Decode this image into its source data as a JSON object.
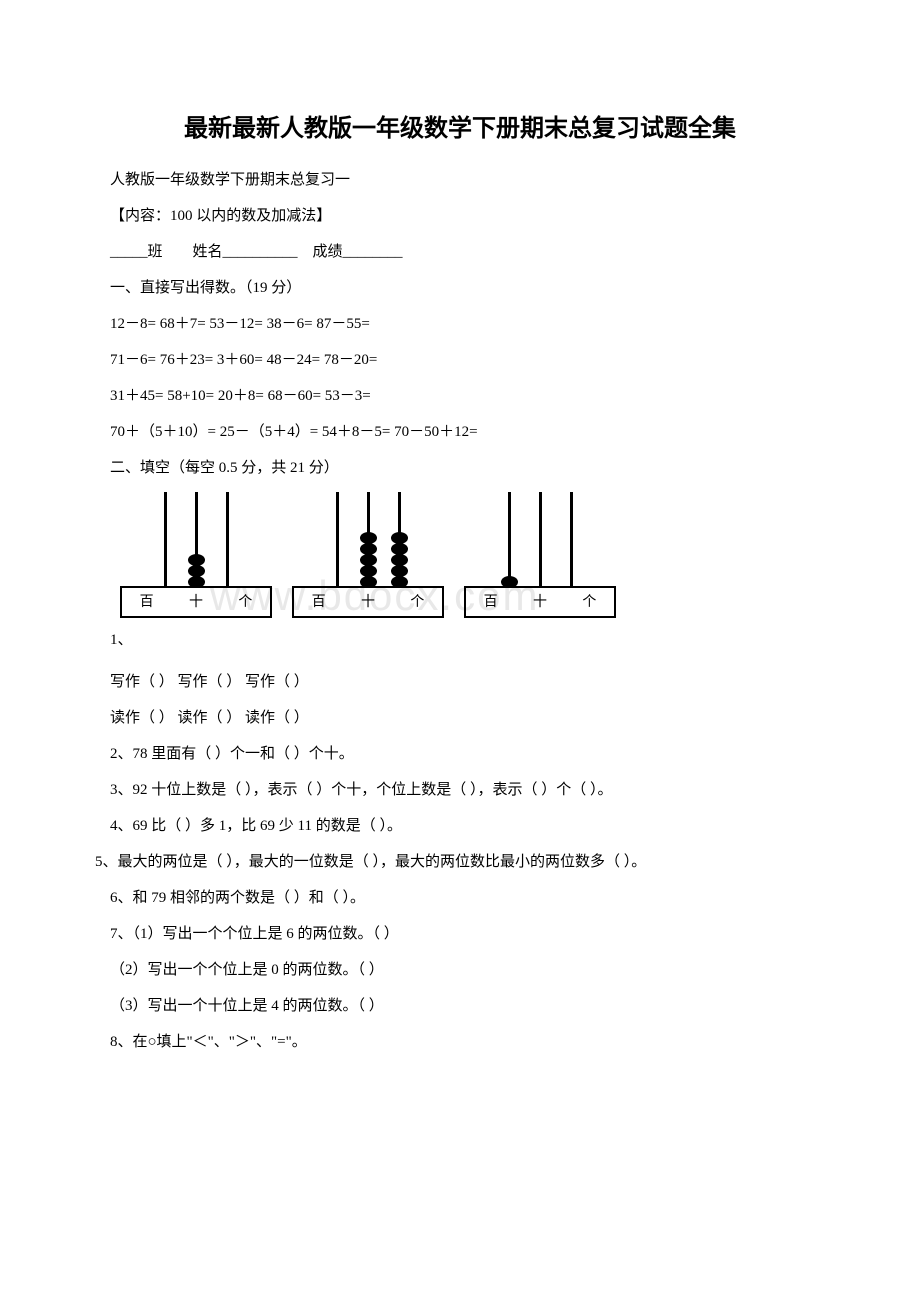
{
  "title": "最新最新人教版一年级数学下册期末总复习试题全集",
  "sub1": "人教版一年级数学下册期末总复习一",
  "sub2": "【内容：100 以内的数及加减法】",
  "formline": "_____班　　姓名__________　成绩________",
  "section1": "一、直接写出得数。（19 分）",
  "eq1": "12－8= 68＋7= 53－12= 38－6=  87－55=",
  "eq2": "71－6= 76＋23= 3＋60= 48－24= 78－20=",
  "eq3": "31＋45=  58+10= 20＋8= 68－60= 53－3=",
  "eq4": "70＋（5＋10）= 25－（5＋4）= 54＋8－5= 70－50＋12=",
  "section2": "二、填空（每空 0.5 分，共 21 分）",
  "abacus": {
    "labels": [
      "百",
      "十",
      "个"
    ],
    "items": [
      {
        "beads": [
          0,
          3,
          0
        ]
      },
      {
        "beads": [
          0,
          5,
          5
        ]
      },
      {
        "beads": [
          1,
          0,
          0
        ]
      }
    ]
  },
  "q1_label": "1、",
  "q1a": "写作（ ）  写作（ ）  写作（ ）",
  "q1b": "读作（ ）  读作（ ）  读作（ ）",
  "q2": "2、78 里面有（ ）个一和（ ）个十。",
  "q3": "3、92 十位上数是（ ），表示（ ）个十，个位上数是（ ），表示（ ）个（ ）。",
  "q4": "4、69 比（ ）多 1，比 69 少 11 的数是（ ）。",
  "q5": "5、最大的两位是（ ），最大的一位数是（ ），最大的两位数比最小的两位数多（ ）。",
  "q6": "6、和 79 相邻的两个数是（ ）和（ ）。",
  "q7": "7、（1）写出一个个位上是 6 的两位数。（ ）",
  "q7b": "（2）写出一个个位上是 0 的两位数。（ ）",
  "q7c": "（3）写出一个十位上是 4 的两位数。（ ）",
  "q8": "8、在○填上\"＜\"、\"＞\"、\"=\"。",
  "watermark": "www.bdocx.com",
  "colors": {
    "text": "#000000",
    "bg": "#ffffff",
    "watermark": "#e8e8e8"
  }
}
